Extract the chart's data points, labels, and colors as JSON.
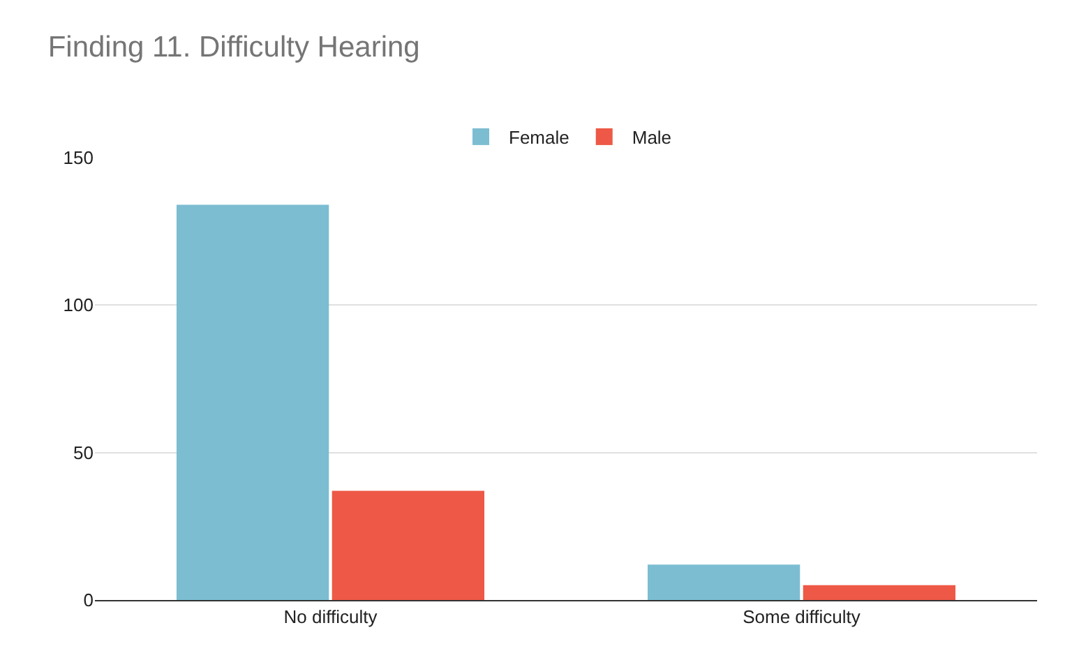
{
  "chart_data": {
    "type": "bar",
    "title": "Finding 11. Difficulty Hearing",
    "categories": [
      "No difficulty",
      "Some difficulty"
    ],
    "series": [
      {
        "name": "Female",
        "color": "#7cbdd2",
        "values": [
          134,
          12
        ]
      },
      {
        "name": "Male",
        "color": "#ee5846",
        "values": [
          37,
          5
        ]
      }
    ],
    "ylim": [
      0,
      150
    ],
    "yticks": [
      0,
      50,
      100,
      150
    ],
    "grid": "y",
    "legend": "top"
  }
}
